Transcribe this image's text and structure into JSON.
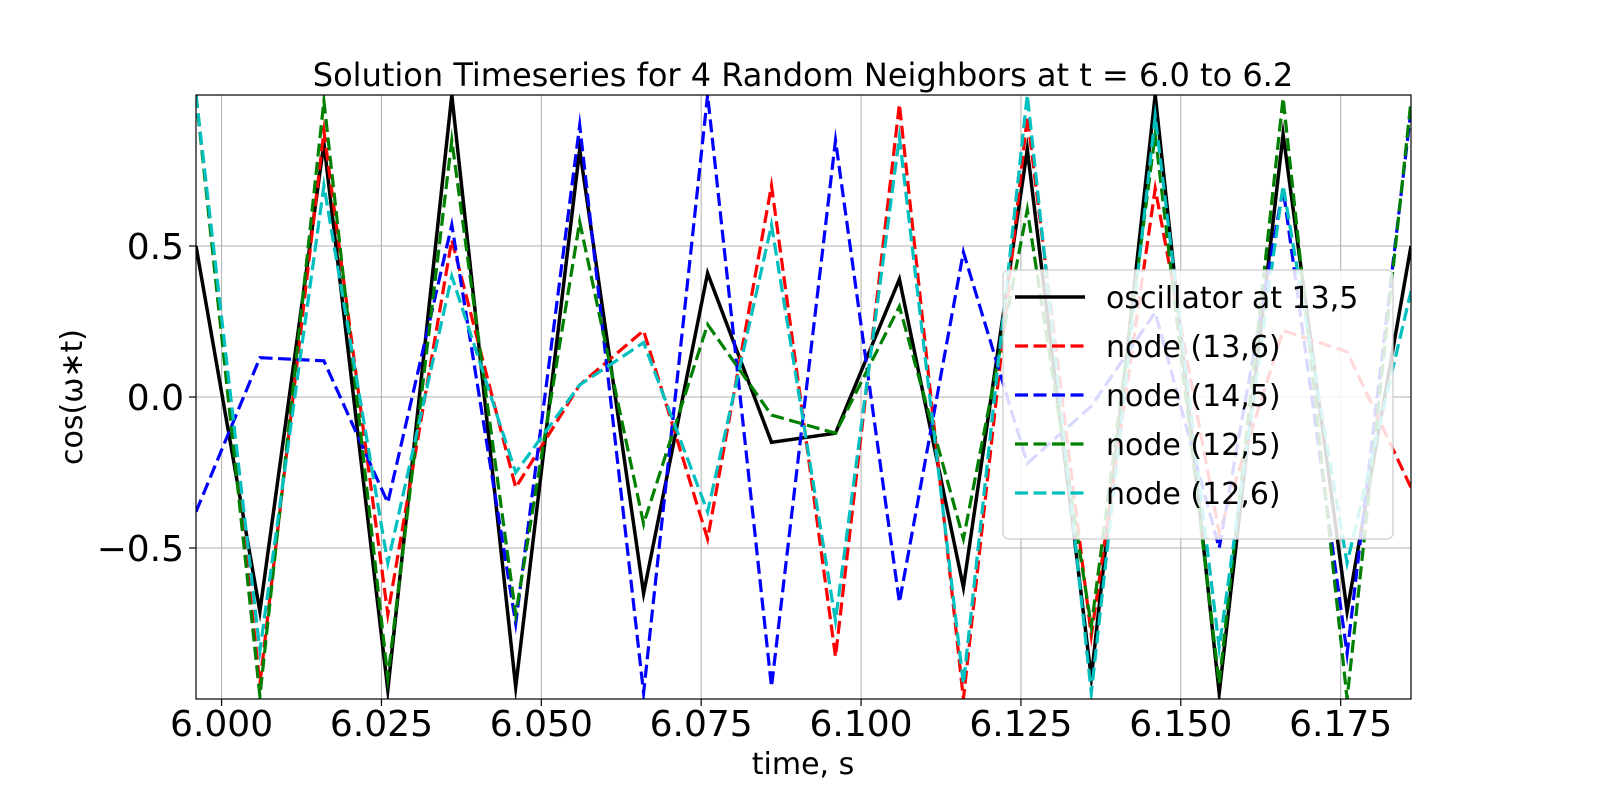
{
  "chart_data": {
    "type": "line",
    "title": "Solution Timeseries for 4 Random Neighbors at t = 6.0 to 6.2",
    "xlabel": "time, s",
    "ylabel": "cos(ω∗t)",
    "xlim": [
      5.996,
      6.186
    ],
    "ylim": [
      -1.0,
      1.0
    ],
    "xticks": [
      6.0,
      6.025,
      6.05,
      6.075,
      6.1,
      6.125,
      6.15,
      6.175
    ],
    "xtick_labels": [
      "6.000",
      "6.025",
      "6.050",
      "6.075",
      "6.100",
      "6.125",
      "6.150",
      "6.175"
    ],
    "yticks": [
      -0.5,
      0.0,
      0.5
    ],
    "ytick_labels": [
      "−0.5",
      "0.0",
      "0.5"
    ],
    "grid": true,
    "legend_position": "center-right",
    "x": [
      5.996,
      6.006,
      6.016,
      6.026,
      6.036,
      6.046,
      6.056,
      6.066,
      6.076,
      6.086,
      6.096,
      6.106,
      6.116,
      6.126,
      6.136,
      6.146,
      6.156,
      6.166,
      6.176,
      6.186
    ],
    "series": [
      {
        "name": "oscillator at 13,5",
        "color": "#000000",
        "style": "solid",
        "values": [
          0.5,
          -0.71,
          0.84,
          -0.97,
          1.0,
          -0.96,
          0.82,
          -0.65,
          0.41,
          -0.15,
          -0.12,
          0.39,
          -0.63,
          0.82,
          -0.93,
          1.0,
          -0.98,
          0.87,
          -0.71,
          0.5
        ]
      },
      {
        "name": "node (13,6)",
        "color": "#ff0000",
        "style": "dashed",
        "values": [
          1.0,
          -0.95,
          0.88,
          -0.72,
          0.52,
          -0.3,
          0.04,
          0.22,
          -0.47,
          0.7,
          -0.86,
          0.97,
          -1.0,
          0.93,
          -0.79,
          0.69,
          -0.45,
          0.22,
          0.15,
          -0.3
        ]
      },
      {
        "name": "node (14,5)",
        "color": "#0000ff",
        "style": "dashed",
        "values": [
          -0.38,
          0.13,
          0.12,
          -0.35,
          0.57,
          -0.75,
          0.9,
          -0.98,
          1.0,
          -0.96,
          0.85,
          -0.68,
          0.48,
          -0.22,
          -0.03,
          0.28,
          -0.5,
          0.69,
          -0.85,
          0.95
        ]
      },
      {
        "name": "node (12,5)",
        "color": "#008000",
        "style": "dashed",
        "values": [
          1.0,
          -0.99,
          0.98,
          -0.93,
          0.85,
          -0.72,
          0.58,
          -0.42,
          0.24,
          -0.06,
          -0.12,
          0.3,
          -0.47,
          0.62,
          -0.76,
          0.87,
          -0.95,
          0.99,
          -1.0,
          0.98
        ]
      },
      {
        "name": "node (12,6)",
        "color": "#00bfbf",
        "style": "dashed",
        "values": [
          1.0,
          -0.84,
          0.7,
          -0.55,
          0.4,
          -0.25,
          0.04,
          0.18,
          -0.38,
          0.57,
          -0.74,
          0.86,
          -0.95,
          1.0,
          -0.98,
          0.93,
          -0.83,
          0.7,
          -0.55,
          0.35
        ]
      }
    ]
  }
}
